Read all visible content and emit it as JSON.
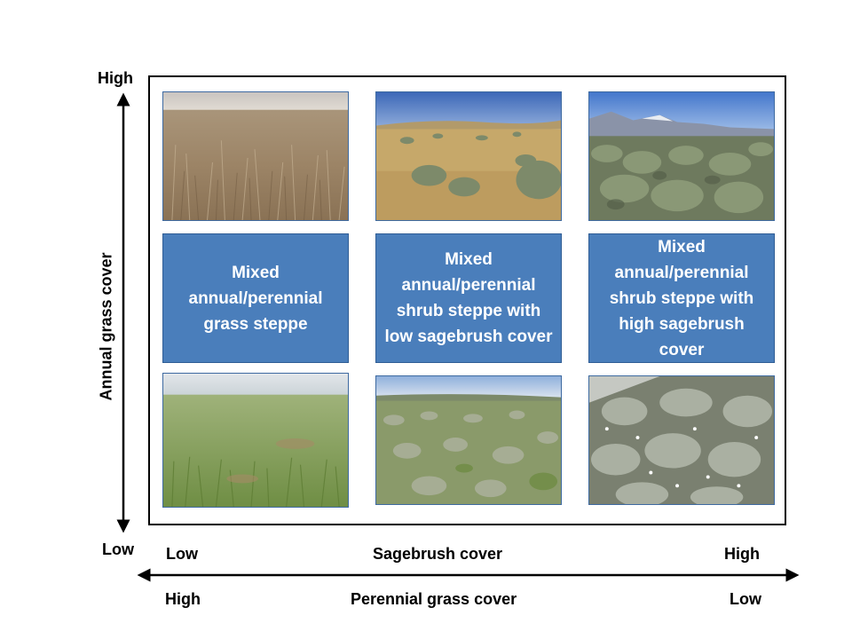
{
  "y_axis": {
    "title": "Annual grass cover",
    "top_label": "High",
    "bottom_label": "Low"
  },
  "x_axis_upper": {
    "title": "Sagebrush cover",
    "left_label": "Low",
    "right_label": "High"
  },
  "x_axis_lower": {
    "title": "Perennial grass cover",
    "left_label": "High",
    "right_label": "Low"
  },
  "middle_row": [
    {
      "label": "Mixed annual/perennial grass steppe"
    },
    {
      "label": "Mixed annual/perennial shrub steppe with low sagebrush cover"
    },
    {
      "label": "Mixed annual/perennial shrub steppe with high sagebrush cover"
    }
  ],
  "photo_row_top": [
    {
      "subject": "annual-grass-field-photo"
    },
    {
      "subject": "sparse-sagebrush-dry-grass-photo"
    },
    {
      "subject": "dense-sagebrush-mountains-photo"
    }
  ],
  "photo_row_bottom": [
    {
      "subject": "green-perennial-grass-field-photo"
    },
    {
      "subject": "green-grass-scattered-sagebrush-photo"
    },
    {
      "subject": "dense-sagebrush-wildflowers-photo"
    }
  ],
  "colors": {
    "box_fill": "#4a7ebb",
    "box_border": "#2f5d95",
    "box_text": "#ffffff"
  }
}
